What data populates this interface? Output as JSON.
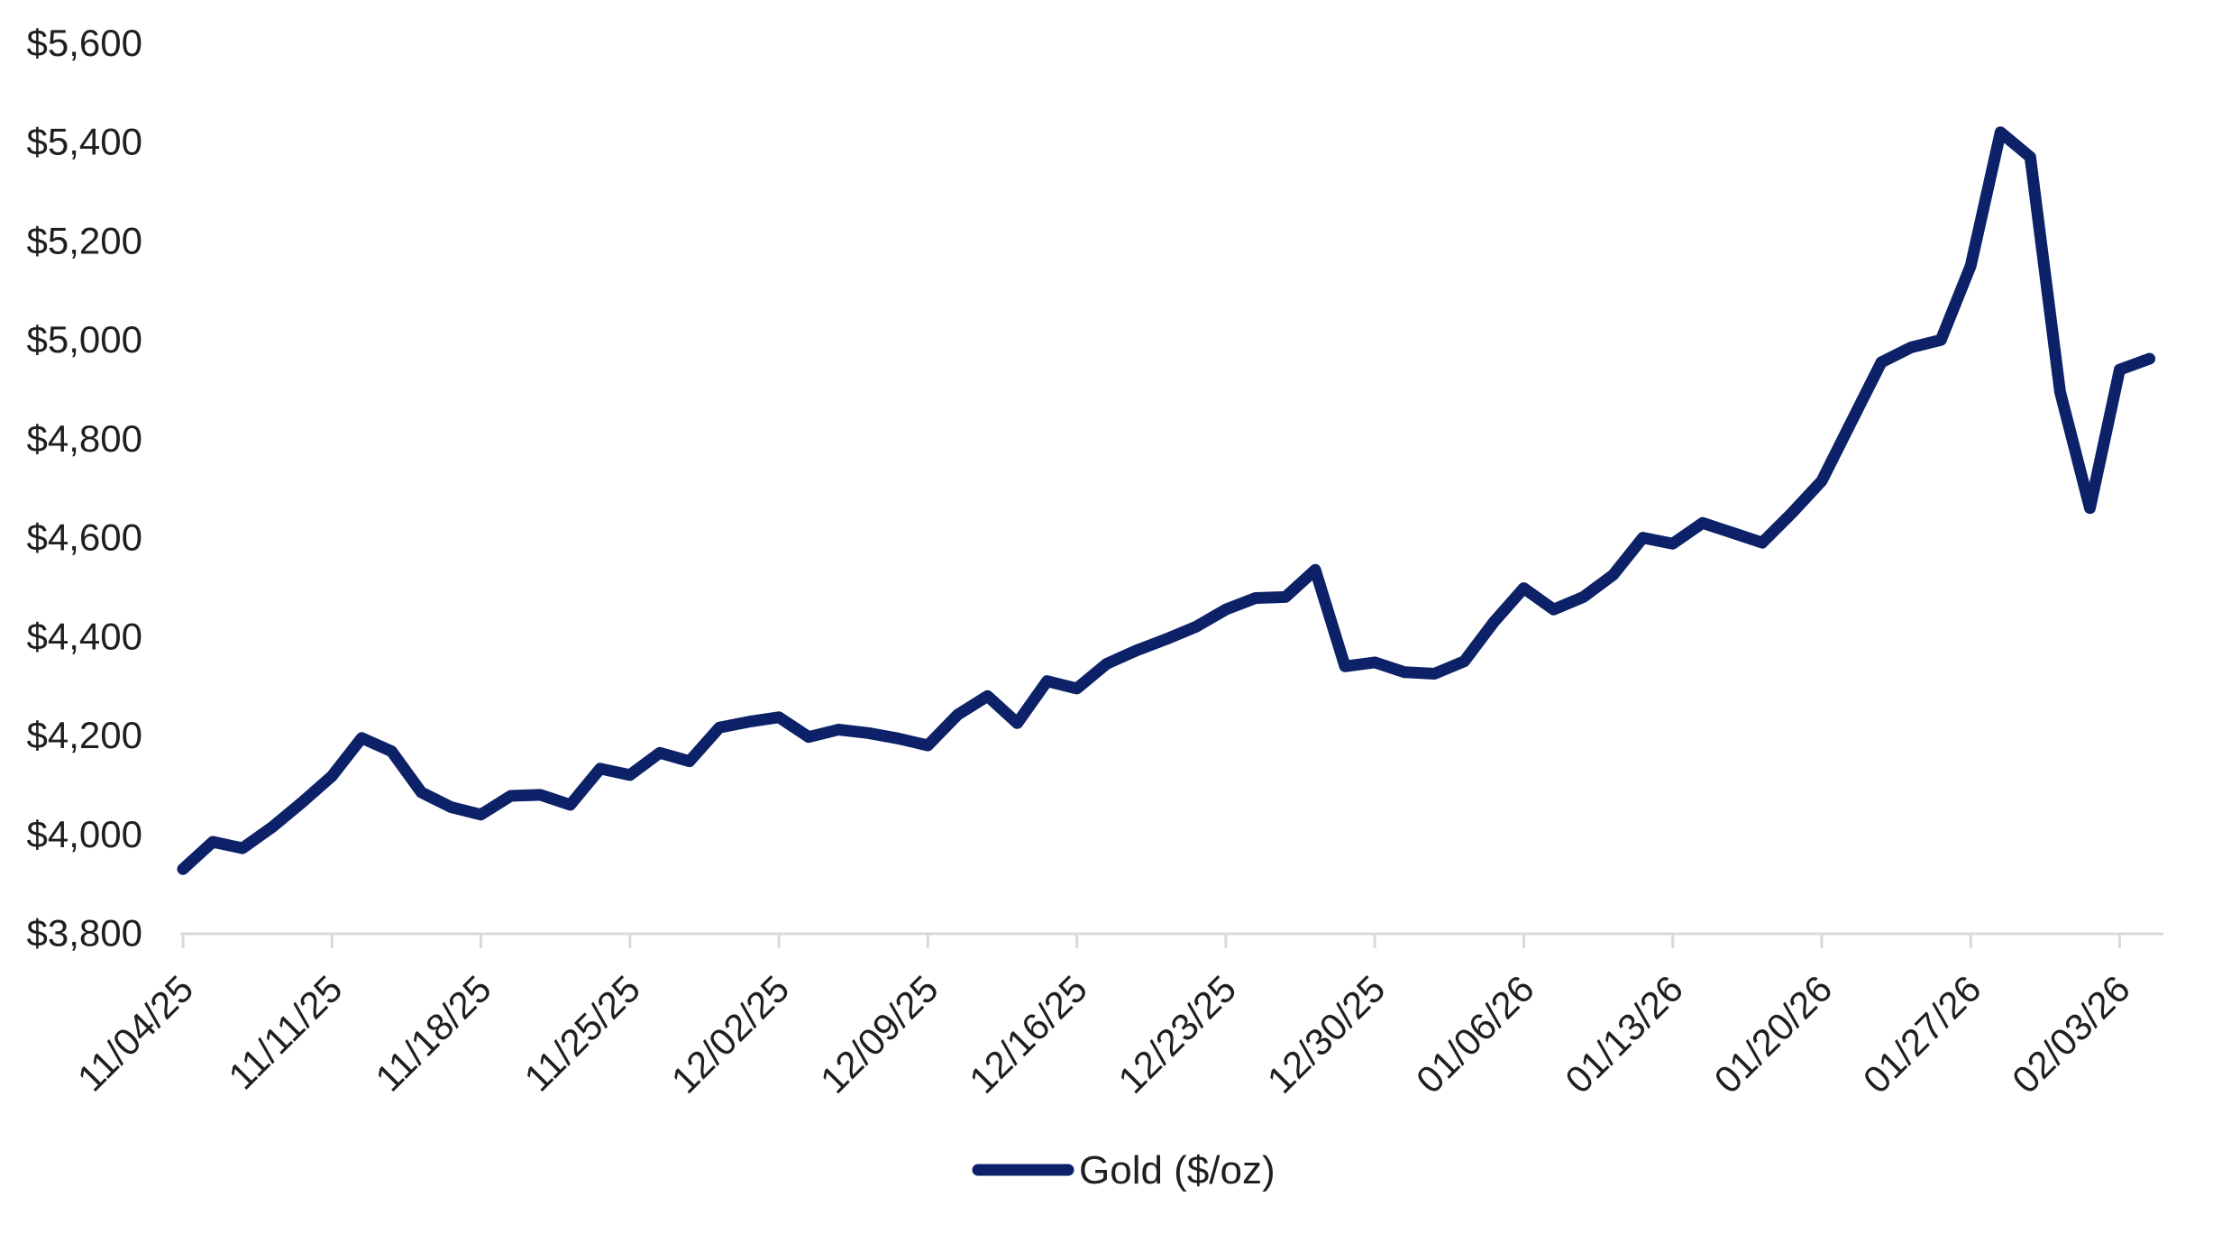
{
  "chart_data": {
    "type": "line",
    "title": "",
    "xlabel": "",
    "ylabel": "",
    "grid": false,
    "background": "#ffffff",
    "axis_color": "#d9d9d9",
    "text_color": "#1f1f1f",
    "ylim": [
      3800,
      5600
    ],
    "ytick_step": 200,
    "ytick_labels": [
      "$3,800",
      "$4,000",
      "$4,200",
      "$4,400",
      "$4,600",
      "$4,800",
      "$5,000",
      "$5,200",
      "$5,400",
      "$5,600"
    ],
    "xtick_every": 5,
    "xtick_labels": [
      "11/04/25",
      "11/11/25",
      "11/18/25",
      "11/25/25",
      "12/02/25",
      "12/09/25",
      "12/16/25",
      "12/23/25",
      "12/30/25",
      "01/06/26",
      "01/13/26",
      "01/20/26",
      "01/27/26",
      "02/03/26"
    ],
    "legend_position": "bottom-center",
    "x": [
      "11/04/25",
      "11/05/25",
      "11/06/25",
      "11/07/25",
      "11/10/25",
      "11/11/25",
      "11/12/25",
      "11/13/25",
      "11/14/25",
      "11/17/25",
      "11/18/25",
      "11/19/25",
      "11/20/25",
      "11/21/25",
      "11/24/25",
      "11/25/25",
      "11/26/25",
      "11/27/25",
      "11/28/25",
      "12/01/25",
      "12/02/25",
      "12/03/25",
      "12/04/25",
      "12/05/25",
      "12/08/25",
      "12/09/25",
      "12/10/25",
      "12/11/25",
      "12/12/25",
      "12/15/25",
      "12/16/25",
      "12/17/25",
      "12/18/25",
      "12/19/25",
      "12/22/25",
      "12/23/25",
      "12/24/25",
      "12/25/25",
      "12/26/25",
      "12/29/25",
      "12/30/25",
      "12/31/25",
      "01/01/26",
      "01/02/26",
      "01/05/26",
      "01/06/26",
      "01/07/26",
      "01/08/26",
      "01/09/26",
      "01/12/26",
      "01/13/26",
      "01/14/26",
      "01/15/26",
      "01/16/26",
      "01/19/26",
      "01/20/26",
      "01/21/26",
      "01/22/26",
      "01/23/26",
      "01/26/26",
      "01/27/26",
      "01/28/26",
      "01/29/26",
      "01/30/26",
      "02/02/26",
      "02/03/26",
      "02/04/26"
    ],
    "series": [
      {
        "name": "Gold ($/oz)",
        "color": "#0c2167",
        "values": [
          3930,
          3985,
          3972,
          4015,
          4065,
          4118,
          4195,
          4168,
          4085,
          4055,
          4040,
          4078,
          4080,
          4060,
          4133,
          4120,
          4165,
          4148,
          4216,
          4228,
          4237,
          4197,
          4212,
          4205,
          4194,
          4180,
          4242,
          4280,
          4225,
          4310,
          4295,
          4345,
          4372,
          4395,
          4420,
          4455,
          4478,
          4480,
          4535,
          4340,
          4348,
          4328,
          4325,
          4350,
          4430,
          4498,
          4455,
          4480,
          4525,
          4600,
          4588,
          4630,
          4610,
          4590,
          4650,
          4715,
          4835,
          4955,
          4985,
          5000,
          5150,
          5420,
          5370,
          4895,
          4660,
          4940,
          4962
        ]
      }
    ]
  }
}
